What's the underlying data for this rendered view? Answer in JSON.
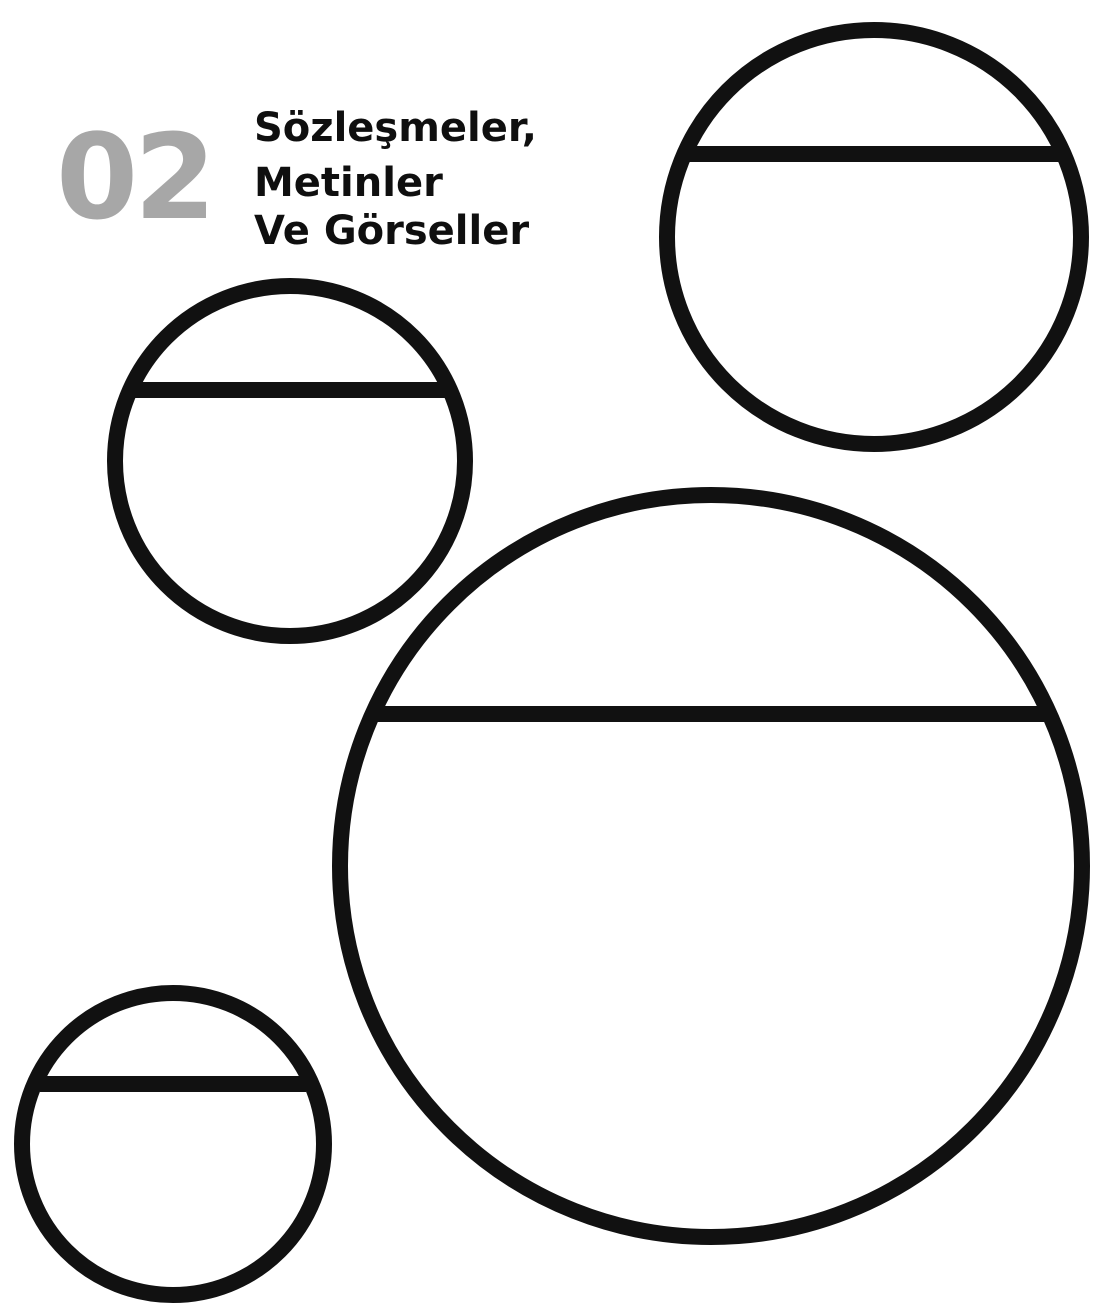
{
  "section": {
    "number": "02",
    "title_lines": [
      "Sözleşmeler,",
      "Metinler",
      "Ve Görseller"
    ]
  },
  "colors": {
    "number": "#a7a7a7",
    "text": "#0f0f0f",
    "outline": "#111111",
    "background": "#ffffff"
  },
  "shapes": [
    "circle-top-right",
    "circle-middle-left",
    "circle-large-center",
    "circle-bottom-left"
  ]
}
